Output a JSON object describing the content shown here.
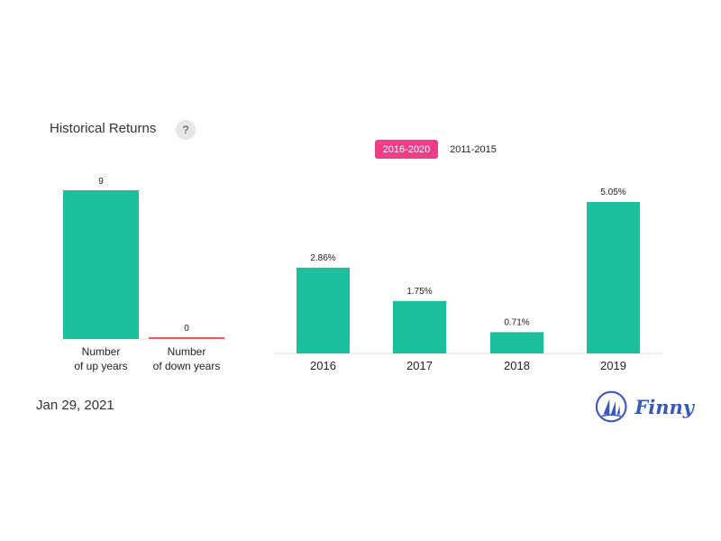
{
  "header": {
    "title": "Historical Returns",
    "help_label": "?"
  },
  "tabs": [
    {
      "label": "2016-2020",
      "active": true
    },
    {
      "label": "2011-2015",
      "active": false
    }
  ],
  "date": "Jan 29, 2021",
  "logo": {
    "text": "Finny",
    "icon": "sailboat-logo-icon"
  },
  "colors": {
    "bar": "#1cbf9b",
    "down_bar": "#ee5a5a",
    "accent": "#ef3d8a",
    "brand": "#3a58b8"
  },
  "chart_data": [
    {
      "type": "bar",
      "categories": [
        [
          "Number",
          "of up years"
        ],
        [
          "Number",
          "of down years"
        ]
      ],
      "values": [
        9,
        0
      ],
      "value_labels": [
        "9",
        "0"
      ],
      "ylim": [
        0,
        9
      ],
      "grid": false
    },
    {
      "type": "bar",
      "categories": [
        "2016",
        "2017",
        "2018",
        "2019"
      ],
      "values": [
        2.86,
        1.75,
        0.71,
        5.05
      ],
      "value_labels": [
        "2.86%",
        "1.75%",
        "0.71%",
        "5.05%"
      ],
      "ylim": [
        0,
        5.05
      ],
      "grid": false
    }
  ]
}
